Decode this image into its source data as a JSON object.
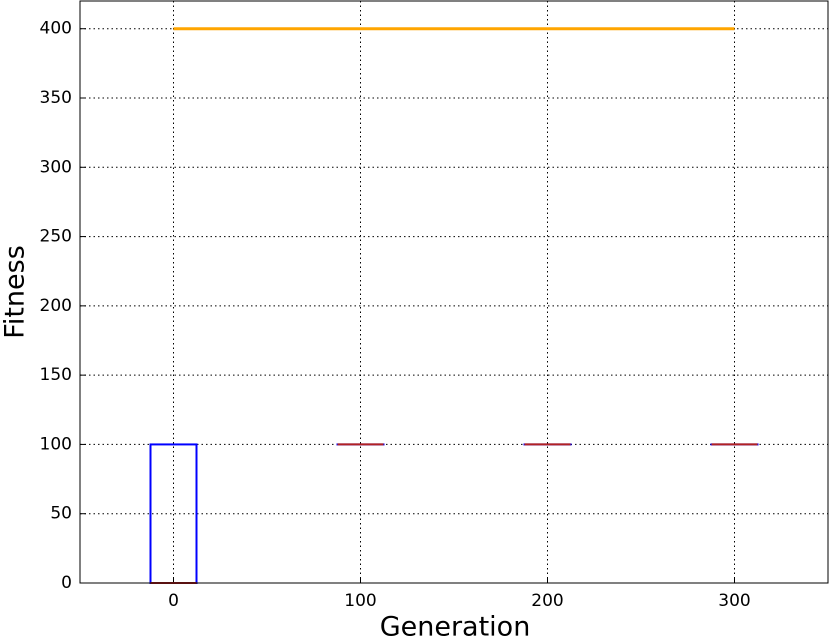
{
  "chart_data": {
    "type": "box",
    "xlabel": "Generation",
    "ylabel": "Fitness",
    "xlim": [
      -50,
      350
    ],
    "ylim": [
      0,
      420
    ],
    "xticks": [
      0,
      100,
      200,
      300
    ],
    "yticks": [
      0,
      50,
      100,
      150,
      200,
      250,
      300,
      350,
      400
    ],
    "grid": true,
    "box_color": "#0000ff",
    "median_color": "#b22222",
    "boxes": [
      {
        "x": 0,
        "q1": 0,
        "median": 0,
        "q3": 100
      },
      {
        "x": 100,
        "q1": 100,
        "median": 100,
        "q3": 100
      },
      {
        "x": 200,
        "q1": 100,
        "median": 100,
        "q3": 100
      },
      {
        "x": 300,
        "q1": 100,
        "median": 100,
        "q3": 100
      }
    ],
    "line": {
      "x": [
        0,
        100,
        200,
        300
      ],
      "values": [
        400,
        400,
        400,
        400
      ],
      "color": "#ffa500"
    }
  }
}
